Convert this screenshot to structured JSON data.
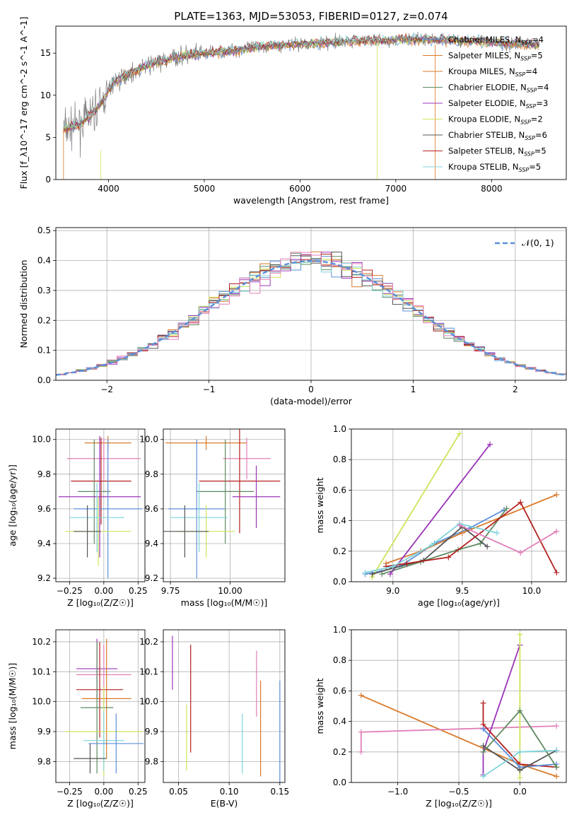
{
  "figure": {
    "title": "PLATE=1363, MJD=53053, FIBERID=0127, z=0.074"
  },
  "colors": {
    "Chabrier MILES": "#5b8fd9",
    "Salpeter MILES": "#d97a2b",
    "Kroupa MILES": "#d97a2b",
    "Chabrier ELODIE": "#5f8a5f",
    "Salpeter ELODIE": "#9b35b8",
    "Kroupa ELODIE": "#cfe35a",
    "Chabrier STELIB": "#555555",
    "Salpeter STELIB": "#b52020",
    "Kroupa STELIB": "#7fd4dc",
    "Pink": "#e17fb8",
    "normal_curve": "#5b8fd9"
  },
  "chart_data": [
    {
      "id": "spectrum",
      "type": "line",
      "xlabel": "wavelength [Angstrom, rest frame]",
      "ylabel": "Flux [f_λ10^-17 erg cm^-2 s^-1 A^-1]",
      "xlim": [
        3450,
        8780
      ],
      "ylim": [
        0,
        18.2
      ],
      "xticks": [
        4000,
        5000,
        6000,
        7000,
        8000
      ],
      "yticks": [
        0,
        5,
        10,
        15
      ],
      "legend_position": "right",
      "legend": [
        {
          "label": "Chabrier MILES, N",
          "sub": "SSP",
          "val": "=4",
          "color": "#5b8fd9"
        },
        {
          "label": "Salpeter MILES, N",
          "sub": "SSP",
          "val": "=5",
          "color": "#d97a2b"
        },
        {
          "label": "Kroupa MILES, N",
          "sub": "SSP",
          "val": "=4",
          "color": "#d97a2b"
        },
        {
          "label": "Chabrier ELODIE, N",
          "sub": "SSP",
          "val": "=4",
          "color": "#5f8a5f"
        },
        {
          "label": "Salpeter ELODIE, N",
          "sub": "SSP",
          "val": "=3",
          "color": "#9b35b8"
        },
        {
          "label": "Kroupa ELODIE, N",
          "sub": "SSP",
          "val": "=2",
          "color": "#cfe35a"
        },
        {
          "label": "Chabrier STELIB, N",
          "sub": "SSP",
          "val": "=6",
          "color": "#555555"
        },
        {
          "label": "Salpeter STELIB, N",
          "sub": "SSP",
          "val": "=5",
          "color": "#b52020"
        },
        {
          "label": "Kroupa STELIB, N",
          "sub": "SSP",
          "val": "=5",
          "color": "#7fd4dc"
        }
      ],
      "continuum_wavelength": [
        3550,
        3700,
        3850,
        3950,
        4050,
        4200,
        4400,
        4700,
        5000,
        5300,
        5600,
        5900,
        6200,
        6500,
        6800,
        7100,
        7400,
        7700,
        8000,
        8300,
        8500
      ],
      "continuum_flux": [
        6.0,
        6.5,
        8.0,
        9.5,
        11.5,
        12.5,
        13.5,
        14.5,
        15.0,
        15.3,
        15.8,
        16.0,
        16.2,
        16.4,
        16.5,
        16.6,
        16.6,
        16.5,
        16.3,
        16.1,
        16.0
      ]
    },
    {
      "id": "residuals",
      "type": "histogram",
      "xlabel": "(data-model)/error",
      "ylabel": "Normed distribution",
      "xlim": [
        -2.5,
        2.5
      ],
      "ylim": [
        0,
        0.51
      ],
      "xticks": [
        -2,
        -1,
        0,
        1,
        2
      ],
      "yticks": [
        0.0,
        0.1,
        0.2,
        0.3,
        0.4,
        0.5
      ],
      "grid": true,
      "legend_label": "𝒩(0, 1)",
      "legend_position": "top-right",
      "bin_width": 0.1
    },
    {
      "id": "age-vs-z",
      "type": "errorbar",
      "xlabel": "Z [log₁₀(Z/Z☉)]",
      "ylabel": "age  [log₁₀(age/yr)]",
      "xlim": [
        -0.35,
        0.3
      ],
      "ylim": [
        9.18,
        10.06
      ],
      "xticks": [
        -0.25,
        0.0,
        0.25
      ],
      "xticklabels": [
        "−0.25",
        "0.00",
        "0.25"
      ],
      "yticks": [
        9.2,
        9.4,
        9.6,
        9.8,
        10.0
      ],
      "yticklabels": [
        "9.2",
        "9.4",
        "9.6",
        "9.8",
        "10.0"
      ],
      "grid": true,
      "points": [
        {
          "x": 0.03,
          "y": 9.98,
          "xerr": 0.17,
          "yerr": 0.04,
          "color": "#d97a2b"
        },
        {
          "x": 0.0,
          "y": 9.89,
          "xerr": 0.27,
          "yerr": 0.12,
          "color": "#e17fb8"
        },
        {
          "x": -0.02,
          "y": 9.76,
          "xerr": 0.22,
          "yerr": 0.25,
          "color": "#b52020"
        },
        {
          "x": -0.07,
          "y": 9.7,
          "xerr": 0.12,
          "yerr": 0.3,
          "color": "#5f8a5f"
        },
        {
          "x": -0.03,
          "y": 9.67,
          "xerr": 0.3,
          "yerr": 0.35,
          "color": "#9b35b8"
        },
        {
          "x": 0.03,
          "y": 9.6,
          "xerr": 0.25,
          "yerr": 0.4,
          "color": "#5b8fd9"
        },
        {
          "x": -0.05,
          "y": 9.55,
          "xerr": 0.2,
          "yerr": 0.2,
          "color": "#7fd4dc"
        },
        {
          "x": -0.04,
          "y": 9.47,
          "xerr": 0.24,
          "yerr": 0.2,
          "color": "#cfe35a"
        },
        {
          "x": -0.12,
          "y": 9.47,
          "xerr": 0.1,
          "yerr": 0.15,
          "color": "#555555"
        }
      ]
    },
    {
      "id": "age-vs-mass",
      "type": "errorbar",
      "xlabel": "mass [log₁₀(M/M☉)]",
      "ylabel": "",
      "xlim": [
        9.72,
        10.23
      ],
      "ylim": [
        9.18,
        10.06
      ],
      "xticks": [
        9.75,
        10.0
      ],
      "xticklabels": [
        "9.75",
        "10.00"
      ],
      "yticks": [
        9.2,
        9.4,
        9.6,
        9.8,
        10.0
      ],
      "yticklabels": [
        "9.2",
        "9.4",
        "9.6",
        "9.8",
        "10.0"
      ],
      "grid": true,
      "points": [
        {
          "x": 9.9,
          "y": 9.98,
          "xerr": 0.17,
          "yerr": 0.04,
          "color": "#d97a2b"
        },
        {
          "x": 10.07,
          "y": 9.89,
          "xerr": 0.1,
          "yerr": 0.12,
          "color": "#e17fb8"
        },
        {
          "x": 10.04,
          "y": 9.76,
          "xerr": 0.17,
          "yerr": 0.3,
          "color": "#b52020"
        },
        {
          "x": 9.98,
          "y": 9.7,
          "xerr": 0.12,
          "yerr": 0.3,
          "color": "#5f8a5f"
        },
        {
          "x": 10.11,
          "y": 9.67,
          "xerr": 0.1,
          "yerr": 0.18,
          "color": "#9b35b8"
        },
        {
          "x": 9.86,
          "y": 9.6,
          "xerr": 0.12,
          "yerr": 0.4,
          "color": "#5b8fd9"
        },
        {
          "x": 9.87,
          "y": 9.55,
          "xerr": 0.12,
          "yerr": 0.2,
          "color": "#7fd4dc"
        },
        {
          "x": 9.9,
          "y": 9.47,
          "xerr": 0.12,
          "yerr": 0.15,
          "color": "#cfe35a"
        },
        {
          "x": 9.81,
          "y": 9.47,
          "xerr": 0.1,
          "yerr": 0.15,
          "color": "#555555"
        }
      ]
    },
    {
      "id": "weight-vs-age",
      "type": "line",
      "xlabel": "age  [log₁₀(age/yr)]",
      "ylabel": "mass weight",
      "xlim": [
        8.7,
        10.25
      ],
      "ylim": [
        0.0,
        1.0
      ],
      "xticks": [
        9.0,
        9.5,
        10.0
      ],
      "xticklabels": [
        "9.0",
        "9.5",
        "10.0"
      ],
      "yticks": [
        0.0,
        0.2,
        0.4,
        0.6,
        0.8,
        1.0
      ],
      "yticklabels": [
        "0.0",
        "0.2",
        "0.4",
        "0.6",
        "0.8",
        "1.0"
      ],
      "grid": true,
      "series": [
        {
          "color": "#5b8fd9",
          "x": [
            8.8,
            8.92,
            9.05,
            9.3,
            9.55,
            9.8
          ],
          "y": [
            0.05,
            0.07,
            0.1,
            0.25,
            0.35,
            0.47
          ]
        },
        {
          "color": "#d97a2b",
          "x": [
            8.95,
            9.2,
            9.5,
            10.18
          ],
          "y": [
            0.12,
            0.2,
            0.32,
            0.57
          ]
        },
        {
          "color": "#5f8a5f",
          "x": [
            8.92,
            9.2,
            9.47,
            9.63,
            9.82
          ],
          "y": [
            0.05,
            0.13,
            0.21,
            0.25,
            0.48
          ]
        },
        {
          "color": "#9b35b8",
          "x": [
            8.98,
            9.7
          ],
          "y": [
            0.05,
            0.9
          ]
        },
        {
          "color": "#cfe35a",
          "x": [
            8.85,
            9.48
          ],
          "y": [
            0.03,
            0.97
          ]
        },
        {
          "color": "#555555",
          "x": [
            8.85,
            9.0,
            9.22,
            9.5,
            9.68
          ],
          "y": [
            0.05,
            0.09,
            0.14,
            0.36,
            0.23
          ]
        },
        {
          "color": "#b52020",
          "x": [
            8.95,
            9.1,
            9.4,
            9.92,
            10.18
          ],
          "y": [
            0.1,
            0.12,
            0.16,
            0.52,
            0.06
          ]
        },
        {
          "color": "#7fd4dc",
          "x": [
            8.8,
            9.0,
            9.28,
            9.48,
            9.75
          ],
          "y": [
            0.06,
            0.1,
            0.24,
            0.38,
            0.32
          ]
        },
        {
          "color": "#e17fb8",
          "x": [
            9.48,
            9.92,
            10.18
          ],
          "y": [
            0.37,
            0.19,
            0.33
          ]
        }
      ]
    },
    {
      "id": "mass-vs-z",
      "type": "errorbar",
      "xlabel": "Z [log₁₀(Z/Z☉)]",
      "ylabel": "mass [log₁₀(M/M☉)]",
      "xlim": [
        -0.35,
        0.3
      ],
      "ylim": [
        9.73,
        10.24
      ],
      "xticks": [
        -0.25,
        0.0,
        0.25
      ],
      "xticklabels": [
        "−0.25",
        "0.00",
        "0.25"
      ],
      "yticks": [
        9.8,
        9.9,
        10.0,
        10.1,
        10.2
      ],
      "yticklabels": [
        "9.8",
        "9.9",
        "10.0",
        "10.1",
        "10.2"
      ],
      "grid": true,
      "points": [
        {
          "x": -0.05,
          "y": 10.11,
          "xerr": 0.15,
          "yerr": 0.1,
          "color": "#9b35b8"
        },
        {
          "x": 0.0,
          "y": 10.09,
          "xerr": 0.2,
          "yerr": 0.1,
          "color": "#e17fb8"
        },
        {
          "x": -0.03,
          "y": 10.04,
          "xerr": 0.17,
          "yerr": 0.16,
          "color": "#b52020"
        },
        {
          "x": 0.02,
          "y": 10.01,
          "xerr": 0.18,
          "yerr": 0.2,
          "color": "#d97a2b"
        },
        {
          "x": -0.05,
          "y": 9.98,
          "xerr": 0.12,
          "yerr": 0.22,
          "color": "#5f8a5f"
        },
        {
          "x": 0.0,
          "y": 9.9,
          "xerr": 0.28,
          "yerr": 0.15,
          "color": "#cfe35a"
        },
        {
          "x": 0.0,
          "y": 9.87,
          "xerr": 0.15,
          "yerr": 0.1,
          "color": "#7fd4dc"
        },
        {
          "x": 0.09,
          "y": 9.86,
          "xerr": 0.2,
          "yerr": 0.1,
          "color": "#5b8fd9"
        },
        {
          "x": -0.1,
          "y": 9.81,
          "xerr": 0.12,
          "yerr": 0.05,
          "color": "#555555"
        }
      ]
    },
    {
      "id": "mass-vs-ebv",
      "type": "errorbar",
      "xlabel": "E(B-V)",
      "ylabel": "",
      "xlim": [
        0.035,
        0.155
      ],
      "ylim": [
        9.73,
        10.24
      ],
      "xticks": [
        0.05,
        0.1,
        0.15
      ],
      "xticklabels": [
        "0.05",
        "0.10",
        "0.15"
      ],
      "yticks": [
        9.8,
        9.9,
        10.0,
        10.1,
        10.2
      ],
      "yticklabels": [
        "9.8",
        "9.9",
        "10.0",
        "10.1",
        "10.2"
      ],
      "grid": true,
      "points": [
        {
          "x": 0.044,
          "y": 10.13,
          "xerr": 0,
          "yerr": 0.09,
          "color": "#9b35b8"
        },
        {
          "x": 0.058,
          "y": 9.88,
          "xerr": 0,
          "yerr": 0.11,
          "color": "#cfe35a"
        },
        {
          "x": 0.062,
          "y": 10.01,
          "xerr": 0,
          "yerr": 0.18,
          "color": "#b52020"
        },
        {
          "x": 0.113,
          "y": 9.86,
          "xerr": 0,
          "yerr": 0.1,
          "color": "#7fd4dc"
        },
        {
          "x": 0.127,
          "y": 10.06,
          "xerr": 0,
          "yerr": 0.11,
          "color": "#e17fb8"
        },
        {
          "x": 0.131,
          "y": 9.91,
          "xerr": 0,
          "yerr": 0.16,
          "color": "#d97a2b"
        },
        {
          "x": 0.15,
          "y": 9.9,
          "xerr": 0,
          "yerr": 0.17,
          "color": "#5b8fd9"
        }
      ]
    },
    {
      "id": "weight-vs-z",
      "type": "line",
      "xlabel": "Z [log₁₀(Z/Z☉)]",
      "ylabel": "mass weight",
      "xlim": [
        -1.38,
        0.38
      ],
      "ylim": [
        0.0,
        1.0
      ],
      "xticks": [
        -1.0,
        -0.5,
        0.0
      ],
      "xticklabels": [
        "−1.0",
        "−0.5",
        "0.0"
      ],
      "yticks": [
        0.0,
        0.2,
        0.4,
        0.6,
        0.8,
        1.0
      ],
      "yticklabels": [
        "0.0",
        "0.2",
        "0.4",
        "0.6",
        "0.8",
        "1.0"
      ],
      "grid": true,
      "series": [
        {
          "color": "#d97a2b",
          "x": [
            -1.3,
            0.0,
            0.3
          ],
          "y": [
            0.57,
            0.12,
            0.04
          ]
        },
        {
          "color": "#e17fb8",
          "x": [
            -1.3,
            -1.3,
            0.3
          ],
          "y": [
            0.2,
            0.33,
            0.37
          ]
        },
        {
          "color": "#9b35b8",
          "x": [
            -0.3,
            -0.3,
            0.0
          ],
          "y": [
            0.05,
            0.2,
            0.9
          ]
        },
        {
          "color": "#cfe35a",
          "x": [
            0.0,
            0.0
          ],
          "y": [
            0.03,
            0.97
          ]
        },
        {
          "color": "#b52020",
          "x": [
            -0.3,
            -0.3,
            0.0,
            0.3
          ],
          "y": [
            0.52,
            0.38,
            0.12,
            0.1
          ]
        },
        {
          "color": "#5b8fd9",
          "x": [
            -0.3,
            0.0,
            0.3
          ],
          "y": [
            0.35,
            0.1,
            0.12
          ]
        },
        {
          "color": "#555555",
          "x": [
            -0.3,
            0.0,
            0.3
          ],
          "y": [
            0.24,
            0.08,
            0.21
          ]
        },
        {
          "color": "#5f8a5f",
          "x": [
            -0.3,
            0.0,
            0.3
          ],
          "y": [
            0.2,
            0.47,
            0.1
          ]
        },
        {
          "color": "#7fd4dc",
          "x": [
            -0.3,
            0.0,
            0.3
          ],
          "y": [
            0.04,
            0.2,
            0.21
          ]
        }
      ]
    }
  ]
}
